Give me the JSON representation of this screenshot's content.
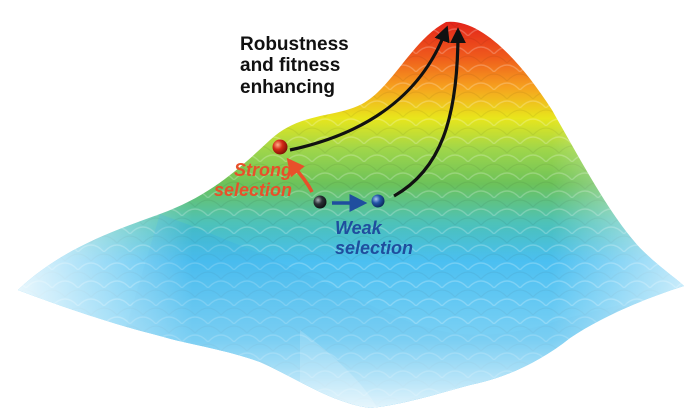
{
  "title": {
    "line1": "Robustness",
    "line2": "and fitness",
    "line3": "enhancing"
  },
  "strong": {
    "line1": "Strong",
    "line2": "selection",
    "color": "#e8502a"
  },
  "weak": {
    "line1": "Weak",
    "line2": "selection",
    "color": "#1f4e9e"
  },
  "colors": {
    "peak": "#e3231a",
    "high": "#f6a21e",
    "mid": "#e8e61c",
    "green": "#6cc25a",
    "teal": "#4ec2b8",
    "base": "#36b8ef",
    "fade": "#e6eef2",
    "arrow_black": "#111111",
    "ball_red": "#d42a17",
    "ball_dark": "#2b3136",
    "ball_blue": "#2356a8"
  }
}
